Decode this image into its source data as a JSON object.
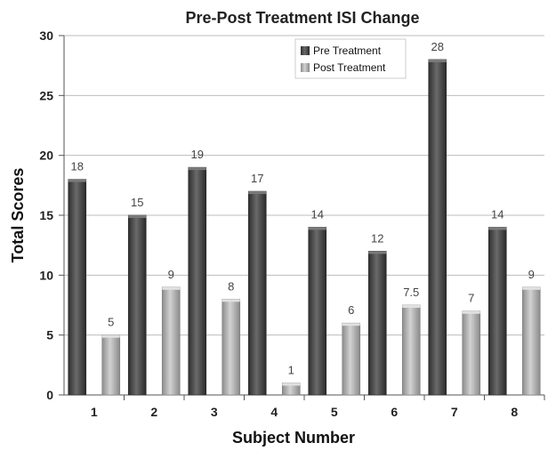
{
  "chart_data": {
    "type": "bar",
    "title": "Pre-Post Treatment  ISI Change",
    "xlabel": "Subject Number",
    "ylabel": "Total Scores",
    "categories": [
      "1",
      "2",
      "3",
      "4",
      "5",
      "6",
      "7",
      "8"
    ],
    "yticks": [
      "0",
      "5",
      "10",
      "15",
      "20",
      "25",
      "30"
    ],
    "ylim": [
      0,
      30
    ],
    "grid": true,
    "legend_position": "top-right",
    "series": [
      {
        "name": "Pre Treatment",
        "color": "#4a4a4a",
        "values": [
          18,
          15,
          19,
          17,
          14,
          12,
          28,
          14
        ],
        "labels": [
          "18",
          "15",
          "19",
          "17",
          "14",
          "12",
          "28",
          "14"
        ]
      },
      {
        "name": "Post Treatment",
        "color": "#a9a9a9",
        "values": [
          5,
          9,
          8,
          1,
          6,
          7.5,
          7,
          9
        ],
        "labels": [
          "5",
          "9",
          "8",
          "1",
          "6",
          "7.5",
          "7",
          "9"
        ]
      }
    ]
  }
}
